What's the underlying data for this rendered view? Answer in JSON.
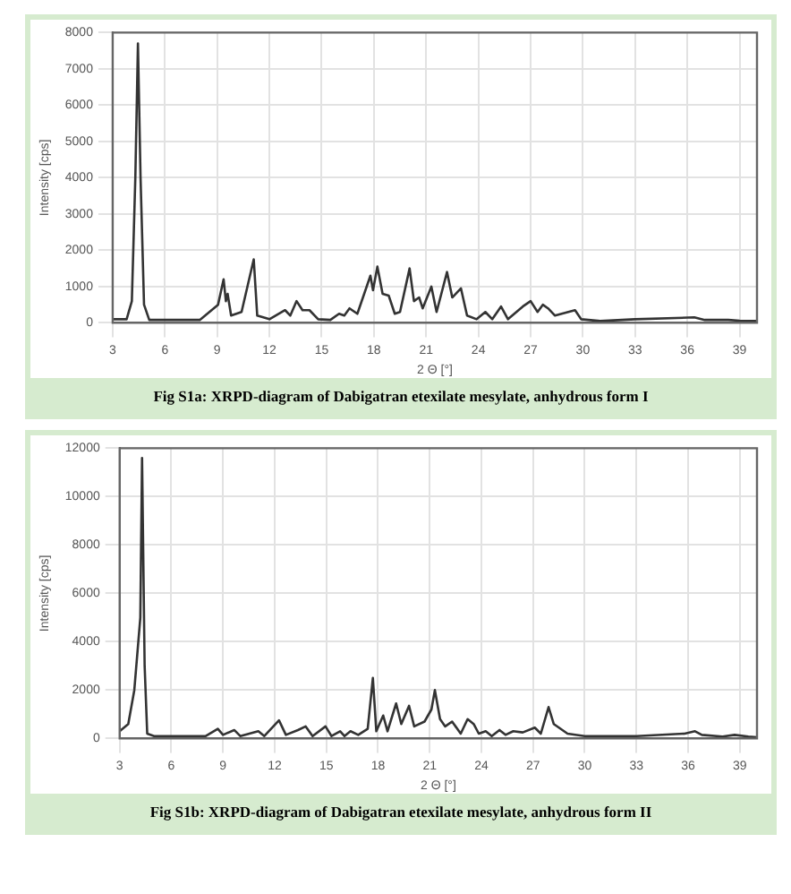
{
  "chart_data": [
    {
      "type": "line",
      "xlabel": "2 Θ [°]",
      "ylabel": "Intensity [cps]",
      "annotations": [
        "Fig S1a: XRPD-diagram of Dabigatran etexilate mesylate, anhydrous form I"
      ],
      "xlim": [
        3,
        40
      ],
      "xticks": [
        3,
        6,
        9,
        12,
        15,
        18,
        21,
        24,
        27,
        30,
        33,
        36,
        39
      ],
      "ylim": [
        0,
        8000
      ],
      "yticks": [
        0,
        1000,
        2000,
        3000,
        4000,
        5000,
        6000,
        7000,
        8000
      ],
      "grid": true,
      "marker": "none",
      "legend": false,
      "series": [
        {
          "color": "#333333",
          "x": [
            3.0,
            3.8,
            4.1,
            4.3,
            4.45,
            4.6,
            4.8,
            5.1,
            8.0,
            9.05,
            9.37,
            9.5,
            9.6,
            9.8,
            10.4,
            11.1,
            11.3,
            12.0,
            12.9,
            13.2,
            13.56,
            13.9,
            14.3,
            14.8,
            15.5,
            16.0,
            16.3,
            16.6,
            17.05,
            17.8,
            17.95,
            18.2,
            18.5,
            18.85,
            19.2,
            19.5,
            20.05,
            20.3,
            20.6,
            20.8,
            21.3,
            21.6,
            22.2,
            22.5,
            23.0,
            23.35,
            23.9,
            24.4,
            24.8,
            25.3,
            25.7,
            26.55,
            27.0,
            27.4,
            27.7,
            28.0,
            28.4,
            29.55,
            29.9,
            31.0,
            33.0,
            36.4,
            37.0,
            38.35,
            39.0,
            40.0
          ],
          "values": [
            100,
            100,
            600,
            4000,
            7700,
            4000,
            500,
            80,
            80,
            500,
            1200,
            600,
            800,
            200,
            300,
            1750,
            200,
            100,
            350,
            200,
            600,
            350,
            350,
            100,
            80,
            250,
            200,
            400,
            250,
            1300,
            900,
            1550,
            800,
            750,
            250,
            300,
            1500,
            600,
            700,
            400,
            1000,
            300,
            1400,
            700,
            950,
            200,
            100,
            300,
            100,
            450,
            100,
            450,
            600,
            300,
            500,
            400,
            200,
            350,
            100,
            50,
            100,
            150,
            80,
            80,
            60,
            50
          ]
        }
      ]
    },
    {
      "type": "line",
      "xlabel": "2 Θ [°]",
      "ylabel": "Intensity [cps]",
      "annotations": [
        "Fig S1b: XRPD-diagram of Dabigatran etexilate mesylate, anhydrous form II"
      ],
      "xlim": [
        3,
        40
      ],
      "xticks": [
        3,
        6,
        9,
        12,
        15,
        18,
        21,
        24,
        27,
        30,
        33,
        36,
        39
      ],
      "ylim": [
        0,
        12000
      ],
      "yticks": [
        0,
        2000,
        4000,
        6000,
        8000,
        10000,
        12000
      ],
      "grid": true,
      "marker": "none",
      "legend": false,
      "series": [
        {
          "color": "#333333",
          "x": [
            3.0,
            3.5,
            3.85,
            4.2,
            4.3,
            4.45,
            4.6,
            5.0,
            8.0,
            8.7,
            9.0,
            9.65,
            10.0,
            11.05,
            11.4,
            12.25,
            12.65,
            13.35,
            13.8,
            14.2,
            14.95,
            15.3,
            15.8,
            16.05,
            16.4,
            16.85,
            17.4,
            17.7,
            17.9,
            18.3,
            18.55,
            19.05,
            19.35,
            19.8,
            20.1,
            20.7,
            21.1,
            21.3,
            21.6,
            21.9,
            22.3,
            22.8,
            23.2,
            23.55,
            23.85,
            24.25,
            24.6,
            25.05,
            25.4,
            25.85,
            26.4,
            27.1,
            27.45,
            27.9,
            28.2,
            28.5,
            29.0,
            30.0,
            33.0,
            35.8,
            36.4,
            36.8,
            38.0,
            38.7,
            39.5,
            40.0
          ],
          "values": [
            300,
            600,
            2000,
            5000,
            11600,
            3000,
            200,
            100,
            100,
            400,
            150,
            350,
            100,
            300,
            100,
            750,
            150,
            350,
            500,
            100,
            500,
            100,
            300,
            100,
            300,
            150,
            400,
            2500,
            300,
            950,
            300,
            1450,
            600,
            1350,
            500,
            700,
            1200,
            2000,
            800,
            500,
            700,
            200,
            800,
            600,
            200,
            300,
            100,
            350,
            150,
            300,
            250,
            450,
            200,
            1300,
            600,
            450,
            200,
            100,
            100,
            200,
            300,
            150,
            80,
            150,
            80,
            50
          ]
        }
      ]
    }
  ]
}
